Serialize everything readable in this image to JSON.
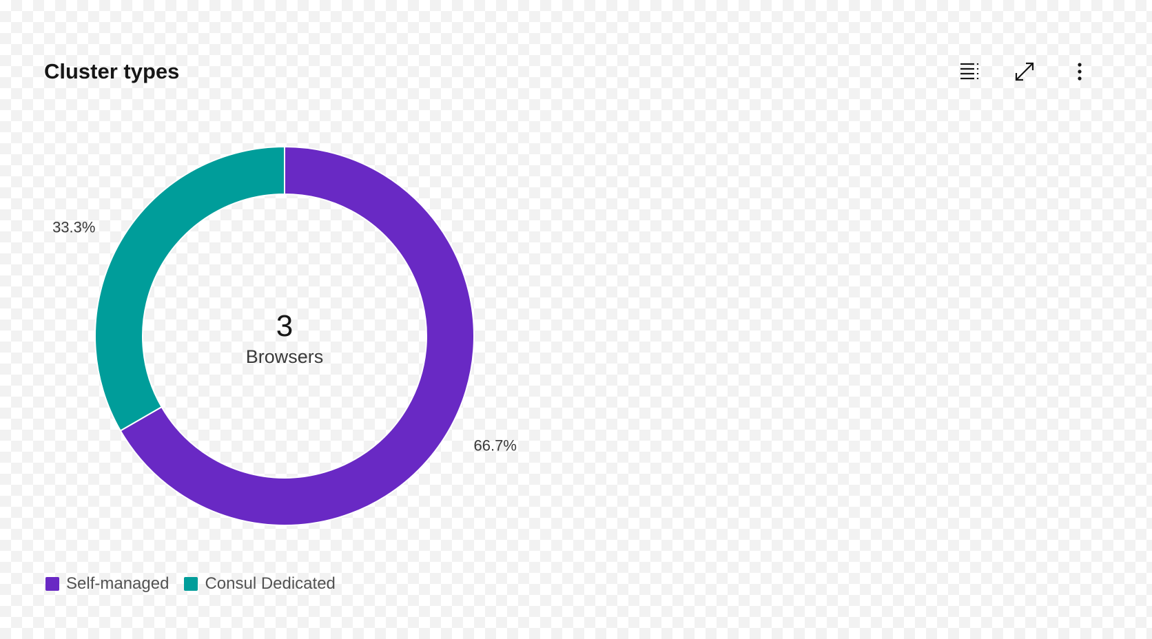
{
  "header": {
    "title": "Cluster types"
  },
  "toolbar": {
    "icons": [
      "data-table-icon",
      "maximize-icon",
      "overflow-menu-vertical-icon"
    ]
  },
  "chart_data": {
    "type": "donut",
    "title": "Cluster types",
    "center_value": "3",
    "center_label": "Browsers",
    "slices": [
      {
        "name": "Self-managed",
        "value": 2,
        "percent_label": "66.7%",
        "color": "#6929c4"
      },
      {
        "name": "Consul Dedicated",
        "value": 1,
        "percent_label": "33.3%",
        "color": "#009d9a"
      }
    ],
    "legend_position": "bottom-left"
  }
}
